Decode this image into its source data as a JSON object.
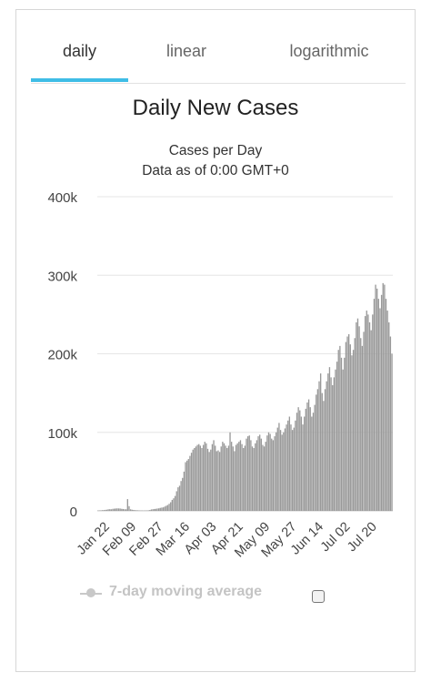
{
  "tabs": [
    {
      "label": "daily",
      "active": true
    },
    {
      "label": "linear",
      "active": false
    },
    {
      "label": "logarithmic",
      "active": false
    }
  ],
  "colors": {
    "accent": "#3fbde6",
    "bar": "#999999",
    "grid": "#e6e6e6",
    "legend_muted": "#c4c4c4"
  },
  "chart_data": {
    "type": "bar",
    "title": "Daily New Cases",
    "subtitle": "Cases per Day",
    "subtitle2": "Data as of 0:00 GMT+0",
    "ylim": [
      0,
      400000
    ],
    "yticks": [
      {
        "value": 0,
        "label": "0"
      },
      {
        "value": 100000,
        "label": "100k"
      },
      {
        "value": 200000,
        "label": "200k"
      },
      {
        "value": 300000,
        "label": "300k"
      },
      {
        "value": 400000,
        "label": "400k"
      }
    ],
    "xticks": [
      "Jan 22",
      "Feb 09",
      "Feb 27",
      "Mar 16",
      "Apr 03",
      "Apr 21",
      "May 09",
      "May 27",
      "Jun 14",
      "Jul 02",
      "Jul 20"
    ],
    "xtick_every": 18,
    "values": [
      500,
      600,
      700,
      900,
      1000,
      1300,
      1500,
      2000,
      2100,
      2000,
      2600,
      2800,
      3000,
      3200,
      3100,
      3000,
      2600,
      2400,
      2100,
      2000,
      15000,
      6000,
      2000,
      1500,
      1200,
      900,
      800,
      700,
      500,
      600,
      500,
      400,
      600,
      500,
      700,
      1100,
      1800,
      2100,
      2400,
      2600,
      3000,
      3200,
      3800,
      4200,
      4500,
      5500,
      6500,
      7500,
      9000,
      11000,
      14000,
      16000,
      19000,
      25000,
      30000,
      32000,
      38000,
      42000,
      50000,
      62000,
      64000,
      66000,
      70000,
      74000,
      78000,
      80000,
      82000,
      84000,
      85000,
      83000,
      80000,
      84000,
      88000,
      86000,
      79000,
      75000,
      78000,
      85000,
      90000,
      83000,
      76000,
      77000,
      75000,
      82000,
      88000,
      86000,
      83000,
      80000,
      83000,
      100000,
      88000,
      82000,
      76000,
      84000,
      86000,
      88000,
      90000,
      85000,
      80000,
      83000,
      92000,
      95000,
      96000,
      90000,
      82000,
      80000,
      86000,
      90000,
      95000,
      97000,
      92000,
      84000,
      82000,
      88000,
      96000,
      100000,
      98000,
      92000,
      90000,
      95000,
      100000,
      106000,
      112000,
      103000,
      97000,
      100000,
      105000,
      110000,
      115000,
      120000,
      110000,
      103000,
      106000,
      115000,
      125000,
      132000,
      128000,
      120000,
      110000,
      120000,
      130000,
      138000,
      142000,
      132000,
      120000,
      125000,
      135000,
      148000,
      155000,
      165000,
      175000,
      150000,
      140000,
      155000,
      165000,
      175000,
      183000,
      170000,
      160000,
      170000,
      180000,
      190000,
      205000,
      210000,
      195000,
      180000,
      195000,
      215000,
      222000,
      225000,
      212000,
      198000,
      205000,
      220000,
      240000,
      245000,
      235000,
      220000,
      210000,
      228000,
      248000,
      255000,
      250000,
      240000,
      230000,
      250000,
      270000,
      288000,
      283000,
      270000,
      258000,
      275000,
      290000,
      288000,
      270000,
      255000,
      240000,
      222000,
      200000
    ]
  },
  "legend": {
    "label": "7-day moving average"
  }
}
